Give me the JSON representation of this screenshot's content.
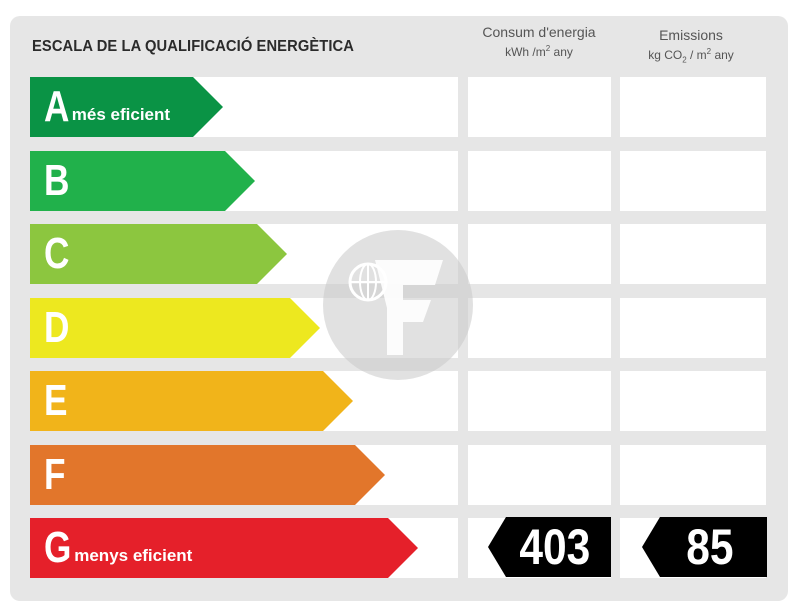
{
  "title": "ESCALA DE LA QUALIFICACIÓ ENERGÈTICA",
  "columns": {
    "consum": {
      "label": "Consum d'energia",
      "unit_pre": "kWh /m",
      "unit_sup": "2",
      "unit_post": " any"
    },
    "emissions": {
      "label": "Emissions",
      "unit_pre": "kg CO",
      "unit_sub": "2",
      "unit_mid": " / m",
      "unit_sup": "2",
      "unit_post": " any"
    }
  },
  "ratings": [
    {
      "letter": "A",
      "note": "més eficient",
      "color": "#0a9345"
    },
    {
      "letter": "B",
      "note": "",
      "color": "#21b14b"
    },
    {
      "letter": "C",
      "note": "",
      "color": "#8cc63f"
    },
    {
      "letter": "D",
      "note": "",
      "color": "#ede81f"
    },
    {
      "letter": "E",
      "note": "",
      "color": "#f1b41a"
    },
    {
      "letter": "F",
      "note": "",
      "color": "#e2762b"
    },
    {
      "letter": "G",
      "note": "menys eficient",
      "color": "#e5202a"
    }
  ],
  "result": {
    "rating": "G",
    "consum_value": "403",
    "emissions_value": "85"
  }
}
